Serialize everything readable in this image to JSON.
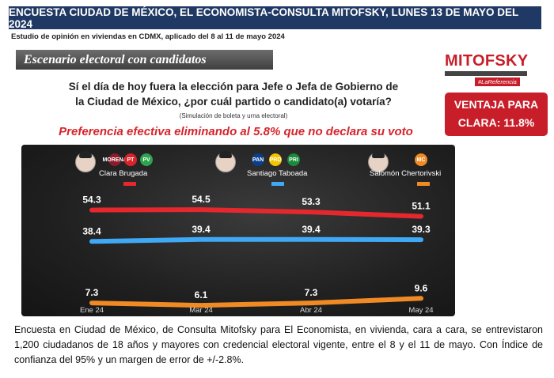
{
  "header": {
    "title": "ENCUESTA CIUDAD DE MÉXICO, EL ECONOMISTA-CONSULTA MITOFSKY, LUNES 13 DE MAYO DEL 2024",
    "subtitle": "Estudio de opinión en viviendas en CDMX, aplicado del 8 al 11 de mayo 2024"
  },
  "scenario_label": "Escenario electoral con candidatos",
  "logo": {
    "brand": "MITOFSKY",
    "tag": "#LaReferencia"
  },
  "question": {
    "line1": "Sí el día de hoy fuera la elección para Jefe o Jefa de Gobierno de",
    "line2": "la Ciudad de México, ¿por cuál partido o candidato(a) votaría?",
    "note": "(Simulación de boleta y urna electoral)"
  },
  "lead_box": {
    "line1": "VENTAJA PARA",
    "line2": "CLARA:  11.8%"
  },
  "preference_note": "Preferencia efectiva eliminando al 5.8% que no declara su voto",
  "candidates": [
    {
      "name": "Clara Brugada",
      "parties": [
        "MORENA",
        "PT",
        "PV"
      ],
      "party_colors": [
        "#8e1b2c",
        "#d8232a",
        "#2ea44f"
      ],
      "color": "#e5282e"
    },
    {
      "name": "Santiago Taboada",
      "parties": [
        "PAN",
        "PRD",
        "PRI"
      ],
      "party_colors": [
        "#0b3f8c",
        "#f2c500",
        "#1a8b3b"
      ],
      "color": "#3fa9f5"
    },
    {
      "name": "Salomón Chertorivski",
      "parties": [
        "MC"
      ],
      "party_colors": [
        "#f08a24"
      ],
      "color": "#f08a24"
    }
  ],
  "chart_data": {
    "type": "line",
    "x": [
      "Ene 24",
      "Mar 24",
      "Abr 24",
      "May 24"
    ],
    "series": [
      {
        "name": "Clara Brugada",
        "color": "#e5282e",
        "values": [
          54.3,
          54.5,
          53.3,
          51.1
        ]
      },
      {
        "name": "Santiago Taboada",
        "color": "#3fa9f5",
        "values": [
          38.4,
          39.4,
          39.4,
          39.3
        ]
      },
      {
        "name": "Salomón Chertorivski",
        "color": "#f08a24",
        "values": [
          7.3,
          6.1,
          7.3,
          9.6
        ]
      }
    ],
    "ylim": [
      0,
      60
    ],
    "grid": false,
    "legend": "top"
  },
  "footer": "Encuesta en Ciudad de México, de Consulta Mitofsky para El Economista,  en vivienda, cara a cara, se entrevistaron 1,200 ciudadanos de 18 años y mayores con credencial electoral vigente, entre el 8 y el 11 de mayo. Con Índice de confianza del 95% y un margen de error de +/-2.8%."
}
